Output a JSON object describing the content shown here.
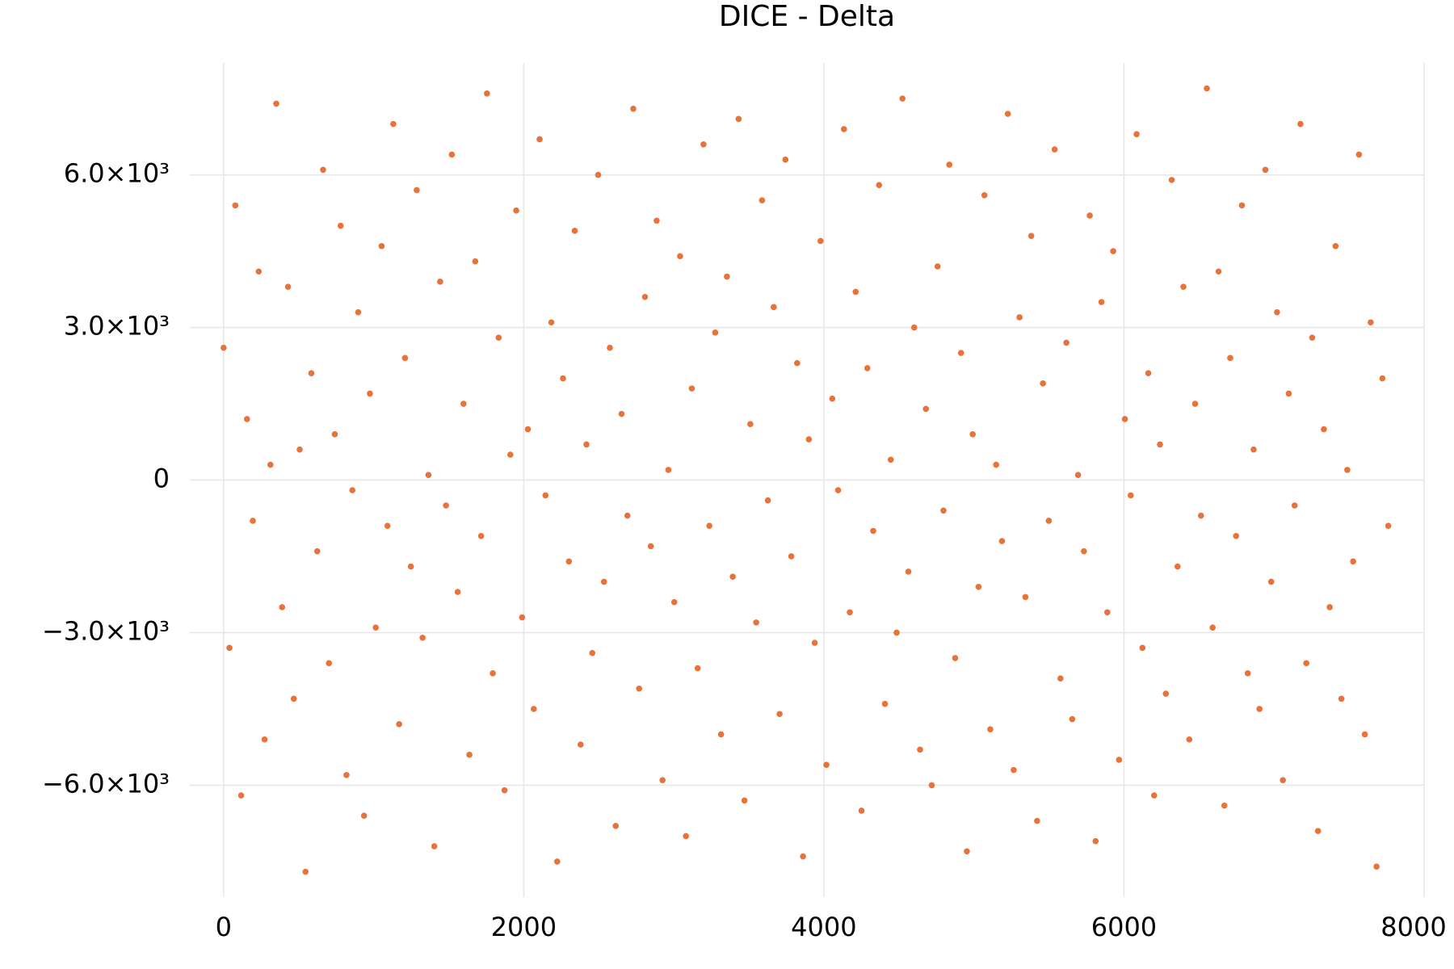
{
  "chart_data": {
    "type": "scatter",
    "title": "DICE - Delta",
    "color": "#e8733a",
    "grid": true,
    "xlim": [
      -225,
      8000
    ],
    "ylim": [
      -8200,
      8200
    ],
    "xticks": [
      0,
      2000,
      4000,
      6000,
      8000
    ],
    "yticks": [
      {
        "value": -6000,
        "label": "−6.0×10³"
      },
      {
        "value": -3000,
        "label": "−3.0×10³"
      },
      0,
      {
        "value": 3000,
        "label": "3.0×10³"
      },
      {
        "value": 6000,
        "label": "6.0×10³"
      }
    ],
    "x": [
      0,
      39,
      78,
      117,
      156,
      195,
      234,
      273,
      312,
      351,
      390,
      429,
      468,
      507,
      546,
      585,
      624,
      663,
      702,
      741,
      780,
      819,
      858,
      897,
      936,
      975,
      1014,
      1053,
      1092,
      1131,
      1170,
      1209,
      1248,
      1287,
      1326,
      1365,
      1404,
      1443,
      1482,
      1521,
      1560,
      1599,
      1638,
      1677,
      1716,
      1755,
      1794,
      1833,
      1872,
      1911,
      1950,
      1989,
      2028,
      2067,
      2106,
      2145,
      2184,
      2223,
      2262,
      2301,
      2340,
      2379,
      2418,
      2457,
      2496,
      2535,
      2574,
      2613,
      2652,
      2691,
      2730,
      2769,
      2808,
      2847,
      2886,
      2925,
      2964,
      3003,
      3042,
      3081,
      3120,
      3159,
      3198,
      3237,
      3276,
      3315,
      3354,
      3393,
      3432,
      3471,
      3510,
      3549,
      3588,
      3627,
      3666,
      3705,
      3744,
      3783,
      3822,
      3861,
      3900,
      3939,
      3978,
      4017,
      4056,
      4095,
      4134,
      4173,
      4212,
      4251,
      4290,
      4329,
      4368,
      4407,
      4446,
      4485,
      4524,
      4563,
      4602,
      4641,
      4680,
      4719,
      4758,
      4797,
      4836,
      4875,
      4914,
      4953,
      4992,
      5031,
      5070,
      5109,
      5148,
      5187,
      5226,
      5265,
      5304,
      5343,
      5382,
      5421,
      5460,
      5499,
      5538,
      5577,
      5616,
      5655,
      5694,
      5733,
      5772,
      5811,
      5850,
      5889,
      5928,
      5967,
      6006,
      6045,
      6084,
      6123,
      6162,
      6201,
      6240,
      6279,
      6318,
      6357,
      6396,
      6435,
      6474,
      6513,
      6552,
      6591,
      6630,
      6669,
      6708,
      6747,
      6786,
      6825,
      6864,
      6903,
      6942,
      6981,
      7020,
      7059,
      7098,
      7137,
      7176,
      7215,
      7254,
      7293,
      7332,
      7371,
      7410,
      7449,
      7488,
      7527,
      7566,
      7605,
      7644,
      7683,
      7722,
      7761
    ],
    "values": [
      2600,
      -3300,
      5400,
      -6200,
      1200,
      -800,
      4100,
      -5100,
      300,
      7400,
      -2500,
      3800,
      -4300,
      600,
      -7700,
      2100,
      -1400,
      6100,
      -3600,
      900,
      5000,
      -5800,
      -200,
      3300,
      -6600,
      1700,
      -2900,
      4600,
      -900,
      7000,
      -4800,
      2400,
      -1700,
      5700,
      -3100,
      100,
      -7200,
      3900,
      -500,
      6400,
      -2200,
      1500,
      -5400,
      4300,
      -1100,
      7600,
      -3800,
      2800,
      -6100,
      500,
      5300,
      -2700,
      1000,
      -4500,
      6700,
      -300,
      3100,
      -7500,
      2000,
      -1600,
      4900,
      -5200,
      700,
      -3400,
      6000,
      -2000,
      2600,
      -6800,
      1300,
      -700,
      7300,
      -4100,
      3600,
      -1300,
      5100,
      -5900,
      200,
      -2400,
      4400,
      -7000,
      1800,
      -3700,
      6600,
      -900,
      2900,
      -5000,
      4000,
      -1900,
      7100,
      -6300,
      1100,
      -2800,
      5500,
      -400,
      3400,
      -4600,
      6300,
      -1500,
      2300,
      -7400,
      800,
      -3200,
      4700,
      -5600,
      1600,
      -200,
      6900,
      -2600,
      3700,
      -6500,
      2200,
      -1000,
      5800,
      -4400,
      400,
      -3000,
      7500,
      -1800,
      3000,
      -5300,
      1400,
      -6000,
      4200,
      -600,
      6200,
      -3500,
      2500,
      -7300,
      900,
      -2100,
      5600,
      -4900,
      300,
      -1200,
      7200,
      -5700,
      3200,
      -2300,
      4800,
      -6700,
      1900,
      -800,
      6500,
      -3900,
      2700,
      -4700,
      100,
      -1400,
      5200,
      -7100,
      3500,
      -2600,
      4500,
      -5500,
      1200,
      -300,
      6800,
      -3300,
      2100,
      -6200,
      700,
      -4200,
      5900,
      -1700,
      3800,
      -5100,
      1500,
      -700,
      7700,
      -2900,
      4100,
      -6400,
      2400,
      -1100,
      5400,
      -3800,
      600,
      -4500,
      6100,
      -2000,
      3300,
      -5900,
      1700,
      -500,
      7000,
      -3600,
      2800,
      -6900,
      1000,
      -2500,
      4600,
      -4300,
      200,
      -1600,
      6400,
      -5000,
      3100,
      -7600,
      2000,
      -900
    ]
  }
}
